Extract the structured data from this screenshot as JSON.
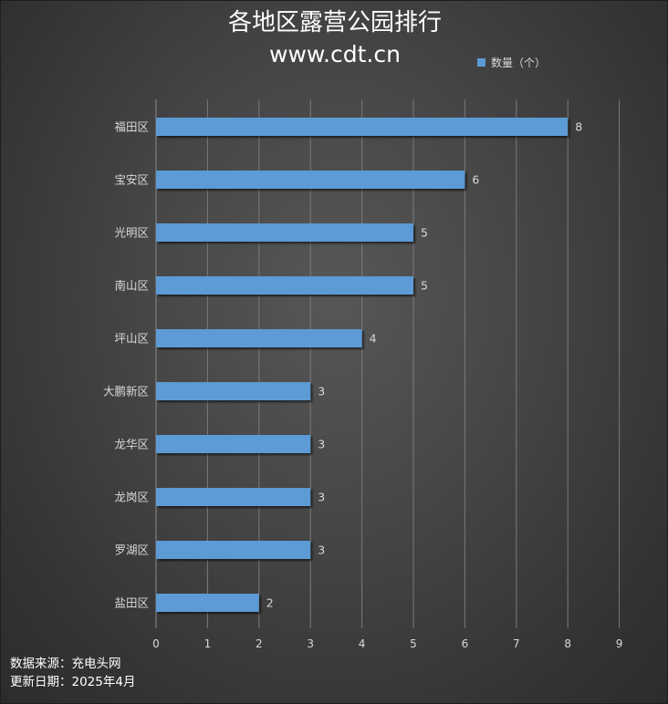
{
  "chart_data": {
    "type": "bar",
    "orientation": "horizontal",
    "title": "各地区露营公园排行",
    "subtitle": "www.cdt.cn",
    "categories": [
      "福田区",
      "宝安区",
      "光明区",
      "南山区",
      "坪山区",
      "大鹏新区",
      "龙华区",
      "龙岗区",
      "罗湖区",
      "盐田区"
    ],
    "series": [
      {
        "name": "数量（个）",
        "values": [
          8,
          6,
          5,
          5,
          4,
          3,
          3,
          3,
          3,
          2
        ]
      }
    ],
    "xlim": [
      0,
      9
    ],
    "xticks": [
      "0",
      "1",
      "2",
      "3",
      "4",
      "5",
      "6",
      "7",
      "8",
      "9"
    ],
    "grid": "vertical",
    "legend": "top-right",
    "data_labels": true
  },
  "colors": {
    "bar": "#5b9bd5",
    "grid": "#7a7a7a",
    "label": "#d9d9d9"
  },
  "footer": {
    "source": "数据来源：充电头网",
    "date": "更新日期：2025年4月"
  }
}
